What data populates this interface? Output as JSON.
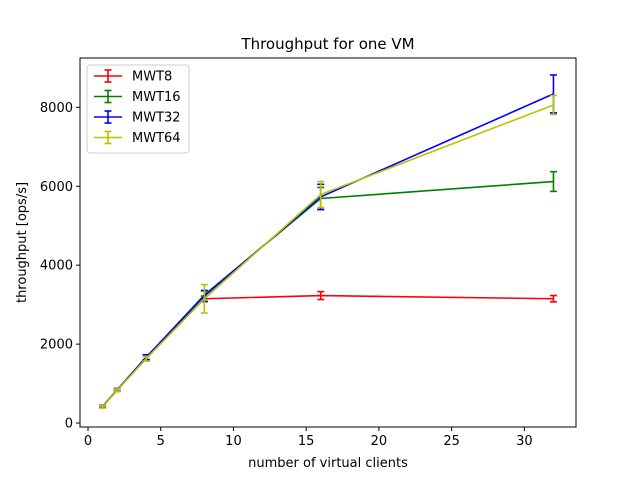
{
  "chart_data": {
    "type": "line",
    "title": "Throughput for one VM",
    "xlabel": "number of virtual clients",
    "ylabel": "throughput [ops/s]",
    "xlim": [
      -0.55,
      33.55
    ],
    "ylim": [
      -100,
      9250
    ],
    "xticks": [
      0,
      5,
      10,
      15,
      20,
      25,
      30
    ],
    "yticks": [
      0,
      2000,
      4000,
      6000,
      8000
    ],
    "grid": false,
    "legend_position": "top-left",
    "series": [
      {
        "name": "MWT8",
        "color": "#ff0000",
        "x": [
          1,
          2,
          4,
          8,
          16,
          32
        ],
        "y": [
          420,
          830,
          1650,
          3150,
          3230,
          3150
        ],
        "err": [
          30,
          35,
          50,
          70,
          100,
          80
        ]
      },
      {
        "name": "MWT16",
        "color": "#008000",
        "x": [
          1,
          2,
          4,
          8,
          16,
          32
        ],
        "y": [
          420,
          840,
          1660,
          3250,
          5690,
          6120
        ],
        "err": [
          30,
          35,
          60,
          100,
          280,
          250
        ]
      },
      {
        "name": "MWT32",
        "color": "#0000ff",
        "x": [
          1,
          2,
          4,
          8,
          16,
          32
        ],
        "y": [
          420,
          840,
          1670,
          3220,
          5730,
          8340
        ],
        "err": [
          30,
          35,
          60,
          140,
          320,
          480
        ]
      },
      {
        "name": "MWT64",
        "color": "#bfbf00",
        "x": [
          1,
          2,
          4,
          8,
          16,
          32
        ],
        "y": [
          410,
          830,
          1630,
          3150,
          5790,
          8060
        ],
        "err": [
          30,
          35,
          60,
          360,
          330,
          240
        ]
      }
    ]
  }
}
